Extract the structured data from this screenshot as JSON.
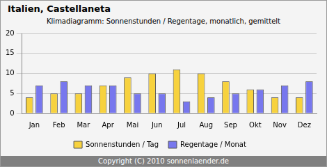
{
  "chart_data": {
    "type": "bar",
    "title": "Italien, Castellaneta",
    "subtitle": "Klimadiagramm: Sonnenstunden / Regentage, monatlich, gemittelt",
    "footer": "Copyright (C) 2010 sonnenlaender.de",
    "categories": [
      "Jan",
      "Feb",
      "Mar",
      "Apr",
      "Mai",
      "Jun",
      "Jul",
      "Aug",
      "Sep",
      "Okt",
      "Nov",
      "Dez"
    ],
    "series": [
      {
        "name": "Sonnenstunden / Tag",
        "color": "#f7d23e",
        "values": [
          4,
          5,
          5,
          7,
          9,
          10,
          11,
          10,
          8,
          6,
          4,
          4
        ]
      },
      {
        "name": "Regentage / Monat",
        "color": "#7777ee",
        "values": [
          7,
          8,
          7,
          7,
          5,
          5,
          3,
          4,
          5,
          6,
          7,
          8
        ]
      }
    ],
    "ylim": [
      0,
      20
    ],
    "yticks": [
      0,
      5,
      10,
      15,
      20
    ],
    "grid": true,
    "legend": "bottom"
  }
}
